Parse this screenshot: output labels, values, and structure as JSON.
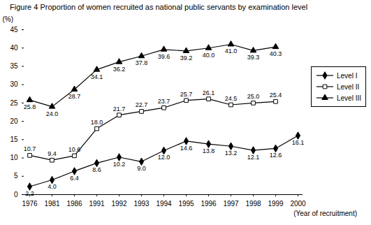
{
  "chart_data": {
    "type": "line",
    "title": "Figure 4  Proportion of women recruited as national public servants by examination level",
    "y_label": "(%)",
    "x_label": "(Year of recruitment)",
    "categories": [
      "1976",
      "1981",
      "1986",
      "1991",
      "1992",
      "1993",
      "1994",
      "1995",
      "1996",
      "1997",
      "1998",
      "1999",
      "2000"
    ],
    "ylim": [
      0,
      45
    ],
    "yticks": [
      0,
      5,
      10,
      15,
      20,
      25,
      30,
      35,
      40,
      45
    ],
    "grid": false,
    "data_labels": true,
    "legend": "right",
    "series": [
      {
        "name": "Level I",
        "color": "#000000",
        "marker": "diamond",
        "values": [
          2.2,
          4.0,
          6.4,
          8.6,
          10.2,
          9.0,
          12.0,
          14.6,
          13.8,
          13.2,
          12.1,
          12.6,
          16.1
        ],
        "value_labels": [
          "2.2",
          "4.0",
          "6.4",
          "8.6",
          "10.2",
          "9.0",
          "12.0",
          "14.6",
          "13.8",
          "13.2",
          "12.1",
          "12.6",
          "16.1"
        ]
      },
      {
        "name": "Level II",
        "color": "#000000",
        "marker": "open-square",
        "values": [
          10.7,
          9.4,
          10.6,
          18.0,
          21.7,
          22.7,
          23.7,
          25.7,
          26.1,
          24.5,
          25.0,
          25.4,
          null
        ],
        "value_labels": [
          "10.7",
          "9.4",
          "10.6",
          "18.0",
          "21.7",
          "22.7",
          "23.7",
          "25.7",
          "26.1",
          "24.5",
          "25.0",
          "25.4",
          null
        ]
      },
      {
        "name": "Level III",
        "color": "#000000",
        "marker": "triangle",
        "values": [
          25.8,
          24.0,
          28.7,
          34.1,
          36.2,
          37.8,
          39.6,
          39.2,
          40.0,
          41.0,
          39.3,
          40.3,
          null
        ],
        "value_labels": [
          "25.8",
          "24.0",
          "28.7",
          "34.1",
          "36.2",
          "37.8",
          "39.6",
          "39.2",
          "40.0",
          "41.0",
          "39.3",
          "40.3",
          null
        ]
      }
    ]
  }
}
